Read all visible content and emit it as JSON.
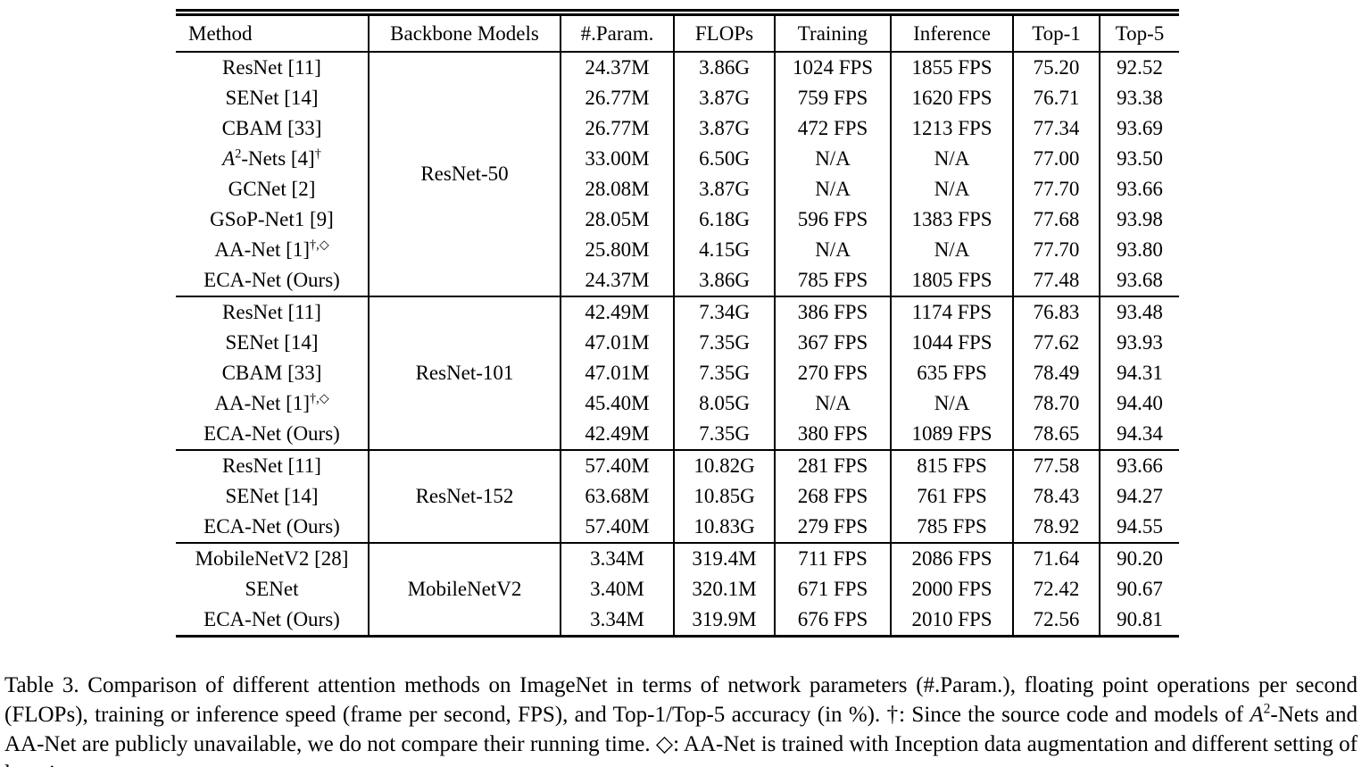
{
  "table": {
    "headers": [
      "Method",
      "Backbone Models",
      "#.Param.",
      "FLOPs",
      "Training",
      "Inference",
      "Top-1",
      "Top-5"
    ],
    "groups": [
      {
        "backbone": "ResNet-50",
        "rows": [
          {
            "method": [
              {
                "t": "ResNet [11]"
              }
            ],
            "params": "24.37M",
            "flops": "3.86G",
            "training": "1024 FPS",
            "inference": "1855 FPS",
            "top1": "75.20",
            "top5": "92.52",
            "bold": [
              "params",
              "flops",
              "training",
              "inference"
            ]
          },
          {
            "method": [
              {
                "t": "SENet [14]"
              }
            ],
            "params": "26.77M",
            "flops": "3.87G",
            "training": "759 FPS",
            "inference": "1620 FPS",
            "top1": "76.71",
            "top5": "93.38",
            "bold": []
          },
          {
            "method": [
              {
                "t": "CBAM [33]"
              }
            ],
            "params": "26.77M",
            "flops": "3.87G",
            "training": "472 FPS",
            "inference": "1213 FPS",
            "top1": "77.34",
            "top5": "93.69",
            "bold": []
          },
          {
            "method": [
              {
                "t": "A",
                "i": true
              },
              {
                "t": "2",
                "s": true
              },
              {
                "t": "-Nets [4]"
              },
              {
                "t": "†",
                "s": true
              }
            ],
            "params": "33.00M",
            "flops": "6.50G",
            "training": "N/A",
            "inference": "N/A",
            "top1": "77.00",
            "top5": "93.50",
            "bold": []
          },
          {
            "method": [
              {
                "t": "GCNet [2]"
              }
            ],
            "params": "28.08M",
            "flops": "3.87G",
            "training": "N/A",
            "inference": "N/A",
            "top1": "77.70",
            "top5": "93.66",
            "bold": []
          },
          {
            "method": [
              {
                "t": "GSoP-Net1 [9]"
              }
            ],
            "params": "28.05M",
            "flops": "6.18G",
            "training": "596 FPS",
            "inference": "1383 FPS",
            "top1": "77.68",
            "top5": "93.98",
            "bold": [
              "top5"
            ]
          },
          {
            "method": [
              {
                "t": "AA-Net [1]"
              },
              {
                "t": "†,◇",
                "s": true
              }
            ],
            "params": "25.80M",
            "flops": "4.15G",
            "training": "N/A",
            "inference": "N/A",
            "top1": "77.70",
            "top5": "93.80",
            "bold": [
              "top1"
            ]
          },
          {
            "method": [
              {
                "t": "ECA-Net (Ours)"
              }
            ],
            "params": "24.37M",
            "flops": "3.86G",
            "training": "785 FPS",
            "inference": "1805 FPS",
            "top1": "77.48",
            "top5": "93.68",
            "bold": [
              "params",
              "flops"
            ]
          }
        ]
      },
      {
        "backbone": "ResNet-101",
        "rows": [
          {
            "method": [
              {
                "t": "ResNet [11]"
              }
            ],
            "params": "42.49M",
            "flops": "7.34G",
            "training": "386 FPS",
            "inference": "1174 FPS",
            "top1": "76.83",
            "top5": "93.48",
            "bold": [
              "params",
              "flops",
              "training",
              "inference"
            ]
          },
          {
            "method": [
              {
                "t": "SENet [14]"
              }
            ],
            "params": "47.01M",
            "flops": "7.35G",
            "training": "367 FPS",
            "inference": "1044 FPS",
            "top1": "77.62",
            "top5": "93.93",
            "bold": []
          },
          {
            "method": [
              {
                "t": "CBAM [33]"
              }
            ],
            "params": "47.01M",
            "flops": "7.35G",
            "training": "270 FPS",
            "inference": "635 FPS",
            "top1": "78.49",
            "top5": "94.31",
            "bold": []
          },
          {
            "method": [
              {
                "t": "AA-Net [1]"
              },
              {
                "t": "†,◇",
                "s": true
              }
            ],
            "params": "45.40M",
            "flops": "8.05G",
            "training": "N/A",
            "inference": "N/A",
            "top1": "78.70",
            "top5": "94.40",
            "bold": [
              "top1",
              "top5"
            ]
          },
          {
            "method": [
              {
                "t": "ECA-Net (Ours)"
              }
            ],
            "params": "42.49M",
            "flops": "7.35G",
            "training": "380 FPS",
            "inference": "1089 FPS",
            "top1": "78.65",
            "top5": "94.34",
            "bold": [
              "params"
            ]
          }
        ]
      },
      {
        "backbone": "ResNet-152",
        "rows": [
          {
            "method": [
              {
                "t": "ResNet [11]"
              }
            ],
            "params": "57.40M",
            "flops": "10.82G",
            "training": "281 FPS",
            "inference": "815 FPS",
            "top1": "77.58",
            "top5": "93.66",
            "bold": [
              "params",
              "flops",
              "training",
              "inference"
            ]
          },
          {
            "method": [
              {
                "t": "SENet [14]"
              }
            ],
            "params": "63.68M",
            "flops": "10.85G",
            "training": "268 FPS",
            "inference": "761 FPS",
            "top1": "78.43",
            "top5": "94.27",
            "bold": []
          },
          {
            "method": [
              {
                "t": "ECA-Net (Ours)"
              }
            ],
            "params": "57.40M",
            "flops": "10.83G",
            "training": "279 FPS",
            "inference": "785 FPS",
            "top1": "78.92",
            "top5": "94.55",
            "bold": [
              "params",
              "top1",
              "top5"
            ]
          }
        ]
      },
      {
        "backbone": "MobileNetV2",
        "rows": [
          {
            "method": [
              {
                "t": "MobileNetV2 [28]"
              }
            ],
            "params": "3.34M",
            "flops": "319.4M",
            "training": "711 FPS",
            "inference": "2086 FPS",
            "top1": "71.64",
            "top5": "90.20",
            "bold": [
              "params",
              "flops",
              "training",
              "inference"
            ]
          },
          {
            "method": [
              {
                "t": "SENet"
              }
            ],
            "params": "3.40M",
            "flops": "320.1M",
            "training": "671 FPS",
            "inference": "2000 FPS",
            "top1": "72.42",
            "top5": "90.67",
            "bold": []
          },
          {
            "method": [
              {
                "t": "ECA-Net (Ours)"
              }
            ],
            "params": "3.34M",
            "flops": "319.9M",
            "training": "676 FPS",
            "inference": "2010 FPS",
            "top1": "72.56",
            "top5": "90.81",
            "bold": [
              "params",
              "top1",
              "top5"
            ]
          }
        ]
      }
    ]
  },
  "caption": {
    "segments": [
      {
        "t": "Table 3. Comparison of different attention methods on ImageNet in terms of network parameters (#.Param.), floating point operations per second (FLOPs), training or inference speed (frame per second, FPS), and Top-1/Top-5 accuracy (in %).  †: Since the source code and models of "
      },
      {
        "t": "A",
        "i": true
      },
      {
        "t": "2",
        "s": true
      },
      {
        "t": "-Nets and AA-Net are publicly unavailable, we do not compare their running time.  ◇: AA-Net is trained with Inception data augmentation and different setting of learning rates."
      }
    ]
  }
}
